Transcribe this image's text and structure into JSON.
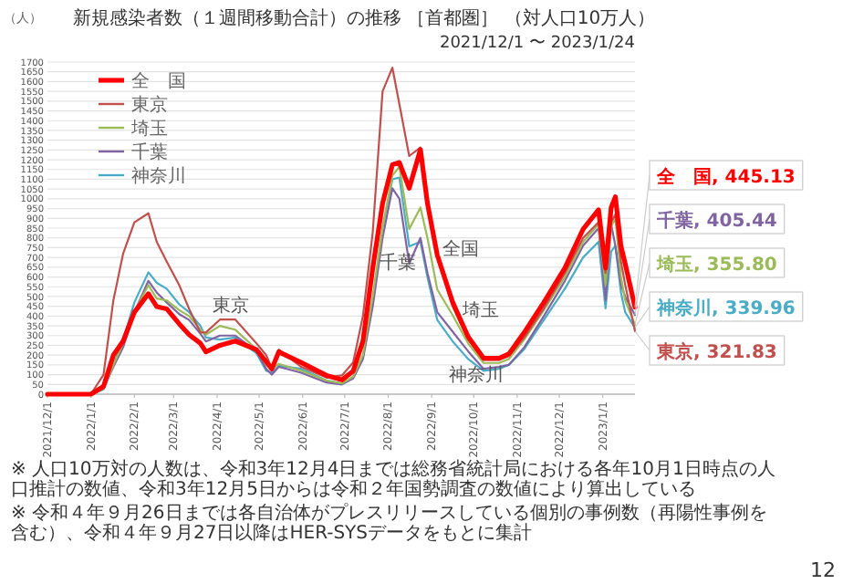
{
  "chart_data": {
    "type": "line",
    "title": "新規感染者数（１週間移動合計）の推移 ［首都圏］ （対人口10万人）",
    "subtitle": "2021/12/1 〜 2023/1/24",
    "ylabel": "（人）",
    "x": [
      "2021-12-01",
      "2022-01-01",
      "2022-01-10",
      "2022-01-17",
      "2022-01-24",
      "2022-02-01",
      "2022-02-11",
      "2022-02-17",
      "2022-02-24",
      "2022-03-05",
      "2022-03-12",
      "2022-03-20",
      "2022-03-24",
      "2022-04-03",
      "2022-04-14",
      "2022-04-29",
      "2022-05-06",
      "2022-05-10",
      "2022-05-15",
      "2022-05-31",
      "2022-06-18",
      "2022-06-29",
      "2022-07-07",
      "2022-07-14",
      "2022-07-21",
      "2022-07-28",
      "2022-08-04",
      "2022-08-09",
      "2022-08-16",
      "2022-08-24",
      "2022-08-29",
      "2022-09-05",
      "2022-09-16",
      "2022-09-27",
      "2022-10-08",
      "2022-10-19",
      "2022-10-26",
      "2022-11-06",
      "2022-11-20",
      "2022-12-05",
      "2022-12-18",
      "2022-12-29",
      "2023-01-03",
      "2023-01-07",
      "2023-01-10",
      "2023-01-14",
      "2023-01-17",
      "2023-01-24"
    ],
    "series": [
      {
        "name": "全　国",
        "color": "#ff0000",
        "values": [
          0,
          0,
          40,
          200,
          272,
          420,
          514,
          448,
          437,
          360,
          305,
          261,
          217,
          250,
          272,
          228,
          166,
          129,
          217,
          162,
          96,
          73,
          118,
          272,
          646,
          977,
          1175,
          1186,
          1054,
          1252,
          977,
          712,
          470,
          294,
          184,
          184,
          206,
          316,
          470,
          646,
          845,
          944,
          646,
          955,
          1010,
          757,
          668,
          445.13
        ]
      },
      {
        "name": "東京",
        "color": "#c0504d",
        "values": [
          0,
          0,
          100,
          480,
          720,
          880,
          926,
          779,
          680,
          558,
          437,
          316,
          316,
          382,
          382,
          261,
          200,
          133,
          228,
          140,
          85,
          96,
          162,
          400,
          830,
          1550,
          1671,
          1484,
          1219,
          1263,
          977,
          700,
          450,
          280,
          175,
          175,
          195,
          290,
          440,
          620,
          800,
          880,
          620,
          880,
          920,
          680,
          560,
          321.83
        ]
      },
      {
        "name": "埼玉",
        "color": "#9bbb59",
        "values": [
          0,
          0,
          30,
          150,
          260,
          420,
          558,
          490,
          480,
          430,
          400,
          330,
          305,
          350,
          330,
          230,
          150,
          130,
          155,
          120,
          70,
          55,
          90,
          200,
          500,
          850,
          1120,
          1164,
          845,
          955,
          800,
          536,
          404,
          260,
          160,
          160,
          180,
          280,
          430,
          600,
          780,
          870,
          560,
          860,
          900,
          600,
          480,
          355.8
        ]
      },
      {
        "name": "千葉",
        "color": "#8064a2",
        "values": [
          0,
          0,
          30,
          140,
          240,
          420,
          580,
          520,
          470,
          410,
          380,
          310,
          270,
          300,
          300,
          220,
          130,
          100,
          140,
          110,
          60,
          50,
          80,
          180,
          450,
          800,
          1054,
          1000,
          668,
          800,
          620,
          420,
          320,
          220,
          130,
          140,
          150,
          240,
          400,
          580,
          760,
          850,
          480,
          870,
          760,
          560,
          500,
          405.44
        ]
      },
      {
        "name": "神奈川",
        "color": "#4bacc6",
        "values": [
          0,
          0,
          25,
          150,
          280,
          470,
          624,
          570,
          540,
          460,
          420,
          350,
          290,
          280,
          290,
          210,
          120,
          110,
          145,
          130,
          70,
          55,
          85,
          190,
          480,
          850,
          1100,
          1109,
          757,
          780,
          600,
          380,
          270,
          180,
          120,
          130,
          150,
          230,
          380,
          540,
          700,
          780,
          440,
          730,
          760,
          520,
          420,
          339.96
        ]
      }
    ],
    "xlim": [
      "2021-12-01",
      "2023-01-24"
    ],
    "ylim": [
      0,
      1700
    ],
    "yticks": [
      0,
      50,
      100,
      150,
      200,
      250,
      300,
      350,
      400,
      450,
      500,
      550,
      600,
      650,
      700,
      750,
      800,
      850,
      900,
      950,
      1000,
      1050,
      1100,
      1150,
      1200,
      1250,
      1300,
      1350,
      1400,
      1450,
      1500,
      1550,
      1600,
      1650,
      1700
    ],
    "xticks": [
      {
        "value": "2021-12-01",
        "label": "2021/12/1"
      },
      {
        "value": "2022-01-01",
        "label": "2022/1/1"
      },
      {
        "value": "2022-02-01",
        "label": "2022/2/1"
      },
      {
        "value": "2022-03-01",
        "label": "2022/3/1"
      },
      {
        "value": "2022-04-01",
        "label": "2022/4/1"
      },
      {
        "value": "2022-05-01",
        "label": "2022/5/1"
      },
      {
        "value": "2022-06-01",
        "label": "2022/6/1"
      },
      {
        "value": "2022-07-01",
        "label": "2022/7/1"
      },
      {
        "value": "2022-08-01",
        "label": "2022/8/1"
      },
      {
        "value": "2022-09-01",
        "label": "2022/9/1"
      },
      {
        "value": "2022-10-01",
        "label": "2022/10/1"
      },
      {
        "value": "2022-11-01",
        "label": "2022/11/1"
      },
      {
        "value": "2022-12-01",
        "label": "2022/12/1"
      },
      {
        "value": "2023-01-01",
        "label": "2023/1/1"
      }
    ],
    "grid": "y",
    "legend": "top left",
    "marker": "none",
    "line_style": "solid",
    "annotations": [
      {
        "text": "東京",
        "x": "2022-04-11",
        "y": 426
      },
      "千葉",
      "全国",
      "埼玉",
      "神奈川",
      {
        "text": "全　国, 445.13",
        "x": "2023-01-24",
        "y": 445.13
      },
      {
        "text": "千葉, 405.44",
        "x": "2023-01-24",
        "y": 405.44
      },
      {
        "text": "埼玉, 355.80",
        "x": "2023-01-24",
        "y": 355.8
      },
      {
        "text": "神奈川, 339.96",
        "x": "2023-01-24",
        "y": 339.96
      },
      {
        "text": "東京, 321.83",
        "x": "2023-01-24",
        "y": 321.83
      },
      "※ 人口10万対の人数は、令和3年12月4日までは総務省統計局における各年10月1日時点の人口推計の数値、令和3年12月5日からは令和２年国勢調査の数値により算出している",
      "※ 令和４年９月26日までは各自治体がプレスリリースしている個別の事例数（再陽性事例を含む）、令和４年９月27日以降はHER-SYSデータをもとに集計",
      "12"
    ]
  }
}
